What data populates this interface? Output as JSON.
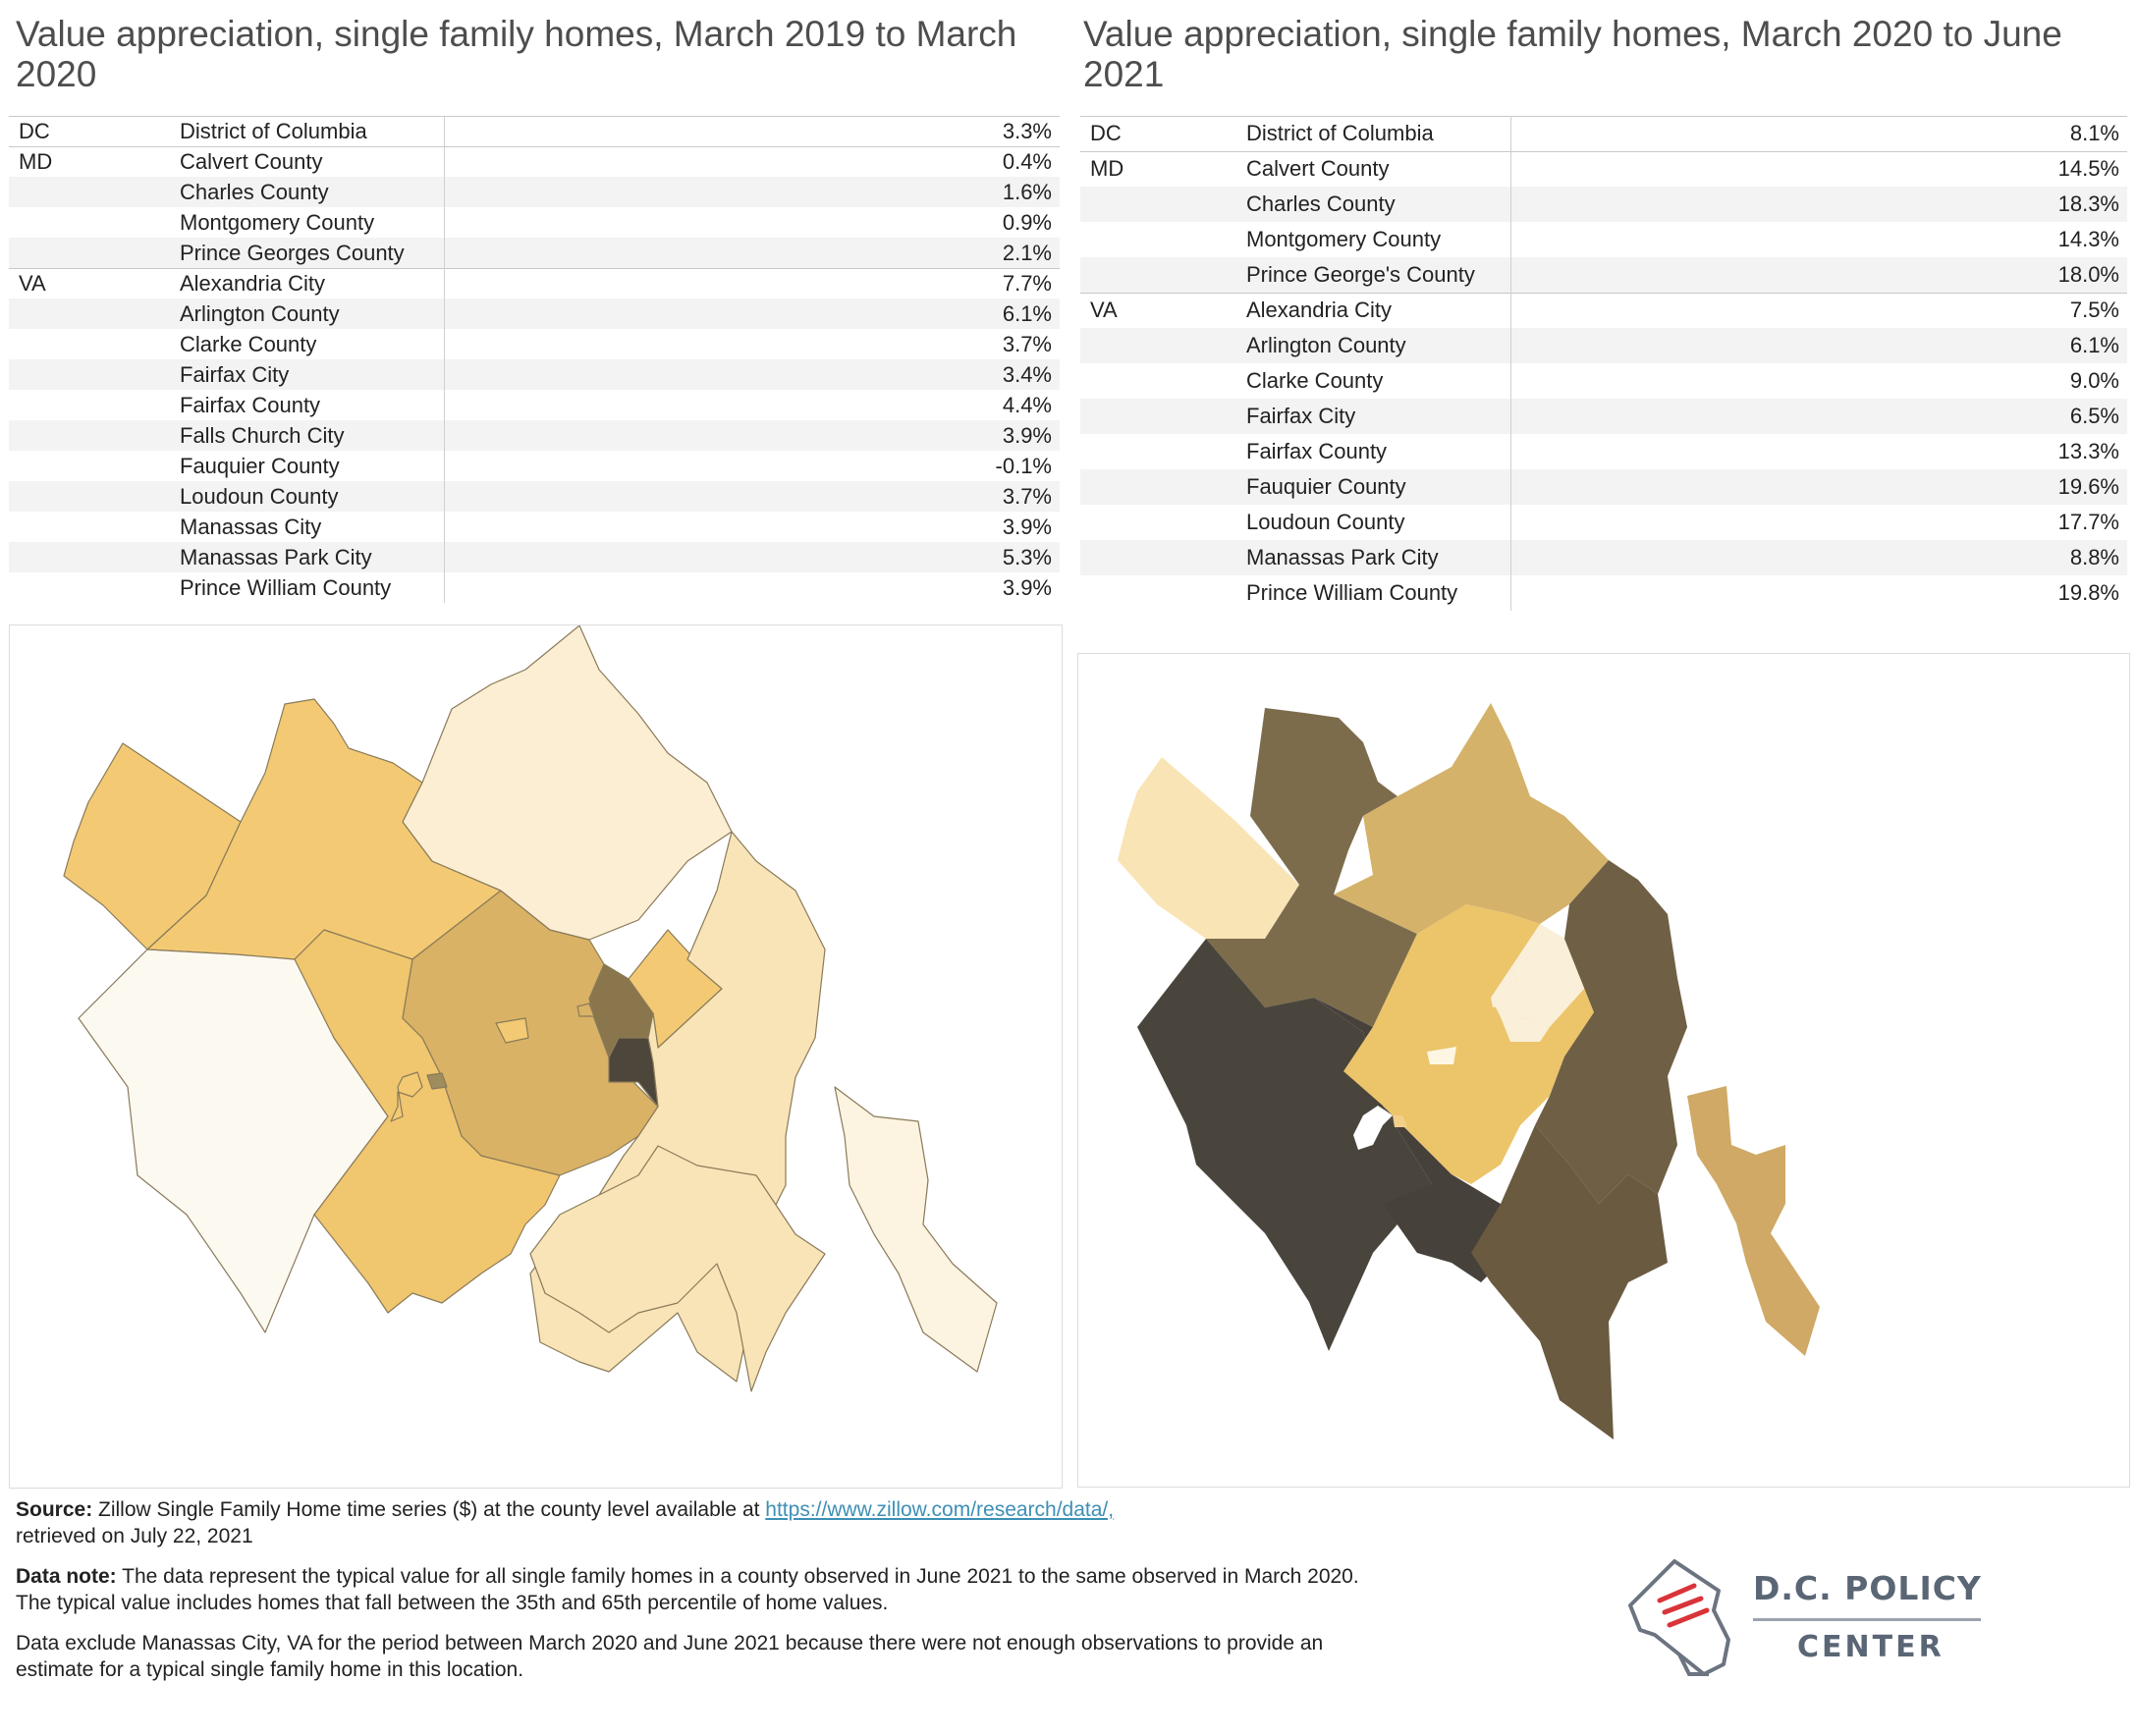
{
  "left": {
    "title": "Value appreciation, single family homes, March 2019 to March 2020",
    "groups": [
      {
        "state": "DC",
        "rows": [
          [
            "District of Columbia",
            "3.3%"
          ]
        ]
      },
      {
        "state": "MD",
        "rows": [
          [
            "Calvert County",
            "0.4%"
          ],
          [
            "Charles County",
            "1.6%"
          ],
          [
            "Montgomery County",
            "0.9%"
          ],
          [
            "Prince Georges County",
            "2.1%"
          ]
        ]
      },
      {
        "state": "VA",
        "rows": [
          [
            "Alexandria City",
            "7.7%"
          ],
          [
            "Arlington County",
            "6.1%"
          ],
          [
            "Clarke County",
            "3.7%"
          ],
          [
            "Fairfax City",
            "3.4%"
          ],
          [
            "Fairfax County",
            "4.4%"
          ],
          [
            "Falls Church City",
            "3.9%"
          ],
          [
            "Fauquier County",
            "-0.1%"
          ],
          [
            "Loudoun County",
            "3.7%"
          ],
          [
            "Manassas City",
            "3.9%"
          ],
          [
            "Manassas Park City",
            "5.3%"
          ],
          [
            "Prince William County",
            "3.9%"
          ]
        ]
      }
    ]
  },
  "right": {
    "title": "Value appreciation, single family homes, March 2020 to June 2021",
    "groups": [
      {
        "state": "DC",
        "rows": [
          [
            "District of Columbia",
            "8.1%"
          ]
        ]
      },
      {
        "state": "MD",
        "rows": [
          [
            "Calvert County",
            "14.5%"
          ],
          [
            "Charles County",
            "18.3%"
          ],
          [
            "Montgomery County",
            "14.3%"
          ],
          [
            "Prince George's County",
            "18.0%"
          ]
        ]
      },
      {
        "state": "VA",
        "rows": [
          [
            "Alexandria City",
            "7.5%"
          ],
          [
            "Arlington County",
            "6.1%"
          ],
          [
            "Clarke County",
            "9.0%"
          ],
          [
            "Fairfax City",
            "6.5%"
          ],
          [
            "Fairfax County",
            "13.3%"
          ],
          [
            "Fauquier County",
            "19.6%"
          ],
          [
            "Loudoun County",
            "17.7%"
          ],
          [
            "Manassas Park City",
            "8.8%"
          ],
          [
            "Prince William County",
            "19.8%"
          ]
        ]
      }
    ]
  },
  "chart_data": [
    {
      "type": "table",
      "title": "Value appreciation, single family homes, March 2019 to March 2020",
      "rows": [
        {
          "state": "DC",
          "county": "District of Columbia",
          "value": 3.3
        },
        {
          "state": "MD",
          "county": "Calvert County",
          "value": 0.4
        },
        {
          "state": "MD",
          "county": "Charles County",
          "value": 1.6
        },
        {
          "state": "MD",
          "county": "Montgomery County",
          "value": 0.9
        },
        {
          "state": "MD",
          "county": "Prince Georges County",
          "value": 2.1
        },
        {
          "state": "VA",
          "county": "Alexandria City",
          "value": 7.7
        },
        {
          "state": "VA",
          "county": "Arlington County",
          "value": 6.1
        },
        {
          "state": "VA",
          "county": "Clarke County",
          "value": 3.7
        },
        {
          "state": "VA",
          "county": "Fairfax City",
          "value": 3.4
        },
        {
          "state": "VA",
          "county": "Fairfax County",
          "value": 4.4
        },
        {
          "state": "VA",
          "county": "Falls Church City",
          "value": 3.9
        },
        {
          "state": "VA",
          "county": "Fauquier County",
          "value": -0.1
        },
        {
          "state": "VA",
          "county": "Loudoun County",
          "value": 3.7
        },
        {
          "state": "VA",
          "county": "Manassas City",
          "value": 3.9
        },
        {
          "state": "VA",
          "county": "Manassas Park City",
          "value": 5.3
        },
        {
          "state": "VA",
          "county": "Prince William County",
          "value": 3.9
        }
      ]
    },
    {
      "type": "table",
      "title": "Value appreciation, single family homes, March 2020 to June 2021",
      "rows": [
        {
          "state": "DC",
          "county": "District of Columbia",
          "value": 8.1
        },
        {
          "state": "MD",
          "county": "Calvert County",
          "value": 14.5
        },
        {
          "state": "MD",
          "county": "Charles County",
          "value": 18.3
        },
        {
          "state": "MD",
          "county": "Montgomery County",
          "value": 14.3
        },
        {
          "state": "MD",
          "county": "Prince George's County",
          "value": 18.0
        },
        {
          "state": "VA",
          "county": "Alexandria City",
          "value": 7.5
        },
        {
          "state": "VA",
          "county": "Arlington County",
          "value": 6.1
        },
        {
          "state": "VA",
          "county": "Clarke County",
          "value": 9.0
        },
        {
          "state": "VA",
          "county": "Fairfax City",
          "value": 6.5
        },
        {
          "state": "VA",
          "county": "Fairfax County",
          "value": 13.3
        },
        {
          "state": "VA",
          "county": "Fauquier County",
          "value": 19.6
        },
        {
          "state": "VA",
          "county": "Loudoun County",
          "value": 17.7
        },
        {
          "state": "VA",
          "county": "Manassas Park City",
          "value": 8.8
        },
        {
          "state": "VA",
          "county": "Prince William County",
          "value": 19.8
        }
      ]
    }
  ],
  "footer": {
    "source_label": "Source:",
    "source_text": " Zillow Single Family Home time series ($) at the county level available at ",
    "source_link": "https://www.zillow.com/research/data/,",
    "source_tail": "retrieved on July 22, 2021",
    "note_label": "Data note:",
    "note_text": " The data represent the typical value for all single family homes in a county observed in June 2021 to the same observed in March 2020. The typical value includes homes that fall between the 35th and 65th percentile of home values.",
    "exclusion_text": "Data exclude Manassas City, VA for the period between March 2020 and June 2021 because there were not enough observations to provide an estimate for a typical single family home in this location."
  },
  "logo": {
    "line1": "D.C. POLICY",
    "line2": "CENTER"
  },
  "colors": {
    "row_shade": "#f3f3f3",
    "link": "#3d8fb5",
    "logo": "#5a6675",
    "logo_accent": "#d9343a"
  }
}
